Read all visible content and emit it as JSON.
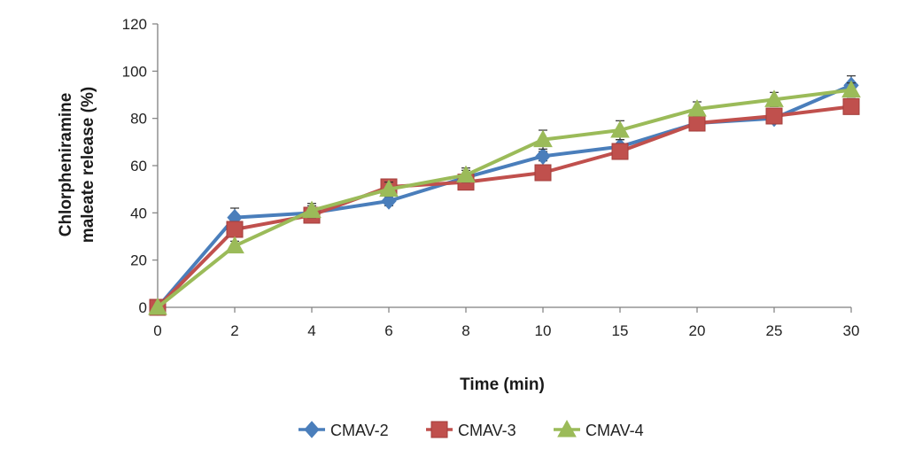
{
  "chart_data": {
    "type": "line",
    "categories": [
      "0",
      "2",
      "4",
      "6",
      "8",
      "10",
      "15",
      "20",
      "25",
      "30"
    ],
    "xlabel": "Time (min)",
    "ylabel_line1": "Chlorpheniramine",
    "ylabel_line2": "maleate release (%)",
    "ylim": [
      0,
      120
    ],
    "yticks": [
      "0",
      "20",
      "40",
      "60",
      "80",
      "100",
      "120"
    ],
    "grid": false,
    "legend_position": "bottom",
    "series": [
      {
        "name": "CMAV-2",
        "color": "#4a7ebb",
        "marker": "diamond",
        "values": [
          0,
          38,
          40,
          45,
          55,
          64,
          68,
          78,
          80,
          94
        ],
        "errors": [
          0,
          4,
          3,
          2,
          3,
          2,
          3,
          3,
          2,
          4
        ]
      },
      {
        "name": "CMAV-3",
        "color": "#c0504d",
        "marker": "square",
        "values": [
          0,
          33,
          39,
          51,
          53,
          57,
          66,
          78,
          81,
          85
        ],
        "errors": [
          0,
          3,
          3,
          3,
          3,
          2,
          3,
          3,
          3,
          2
        ]
      },
      {
        "name": "CMAV-4",
        "color": "#9bbb59",
        "marker": "triangle",
        "values": [
          0,
          26,
          41,
          50,
          56,
          71,
          75,
          84,
          88,
          92
        ],
        "errors": [
          0,
          2,
          3,
          3,
          3,
          4,
          4,
          3,
          3,
          3
        ]
      }
    ]
  }
}
